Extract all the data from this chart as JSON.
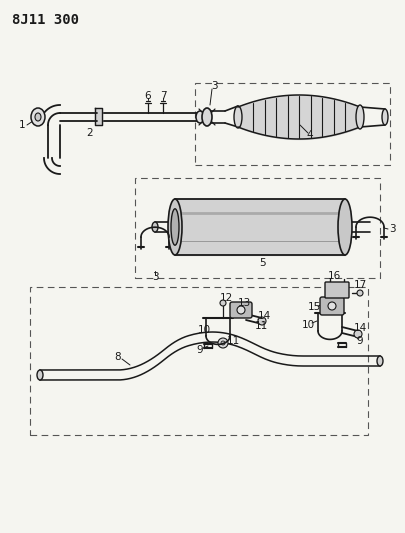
{
  "title": "8J11 300",
  "bg_color": "#f5f5f0",
  "line_color": "#1a1a1a",
  "dashed_color": "#555555",
  "title_fontsize": 10,
  "label_fontsize": 7.5,
  "figsize": [
    4.05,
    5.33
  ],
  "dpi": 100
}
